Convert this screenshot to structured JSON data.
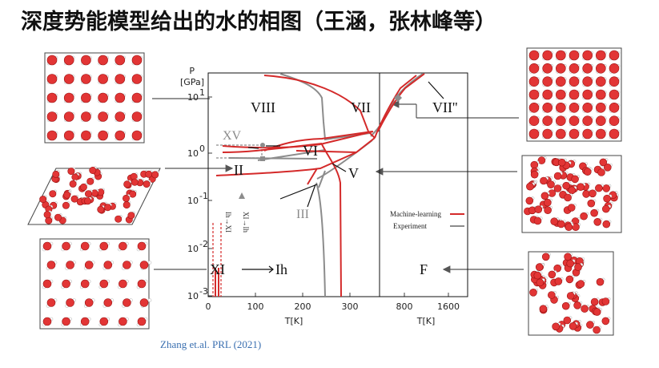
{
  "slide": {
    "title": "深度势能模型给出的水的相图（王涵，张林峰等）",
    "citation": "Zhang et.al. PRL (2021)"
  },
  "plot": {
    "y_label_line1": "P",
    "y_label_line2": "[GPa]",
    "y_ticks": [
      {
        "base": "10",
        "exp": "1"
      },
      {
        "base": "10",
        "exp": "0"
      },
      {
        "base": "10",
        "exp": "-1"
      },
      {
        "base": "10",
        "exp": "-2"
      },
      {
        "base": "10",
        "exp": "-3"
      }
    ],
    "x_ticks_left": [
      "0",
      "100",
      "200",
      "300"
    ],
    "x_ticks_right": [
      "800",
      "1600"
    ],
    "x_label_left": "T[K]",
    "x_label_right": "T[K]",
    "phase_labels": {
      "VIII": "VIII",
      "VII": "VII",
      "VII2": "VII''",
      "XV": "XV",
      "VI": "VI",
      "II": "II",
      "V": "V",
      "III": "III",
      "XI": "XI",
      "Ih": "Ih",
      "F": "F"
    },
    "transition_labels": {
      "ih_to_xi": "Ih→XI",
      "xi_to_ih": "XI→Ih"
    },
    "legend": {
      "ml": "Machine-learning",
      "exp": "Experiment"
    },
    "colors": {
      "ml": "#d42a2a",
      "exp": "#8c8c8c",
      "arrow": "#555555"
    }
  },
  "snapshots": [
    {
      "name": "ice-viii-structure"
    },
    {
      "name": "ice-ii-structure"
    },
    {
      "name": "ice-xi-structure"
    },
    {
      "name": "ice-vii2-structure"
    },
    {
      "name": "ice-v-structure"
    },
    {
      "name": "fluid-structure"
    }
  ]
}
